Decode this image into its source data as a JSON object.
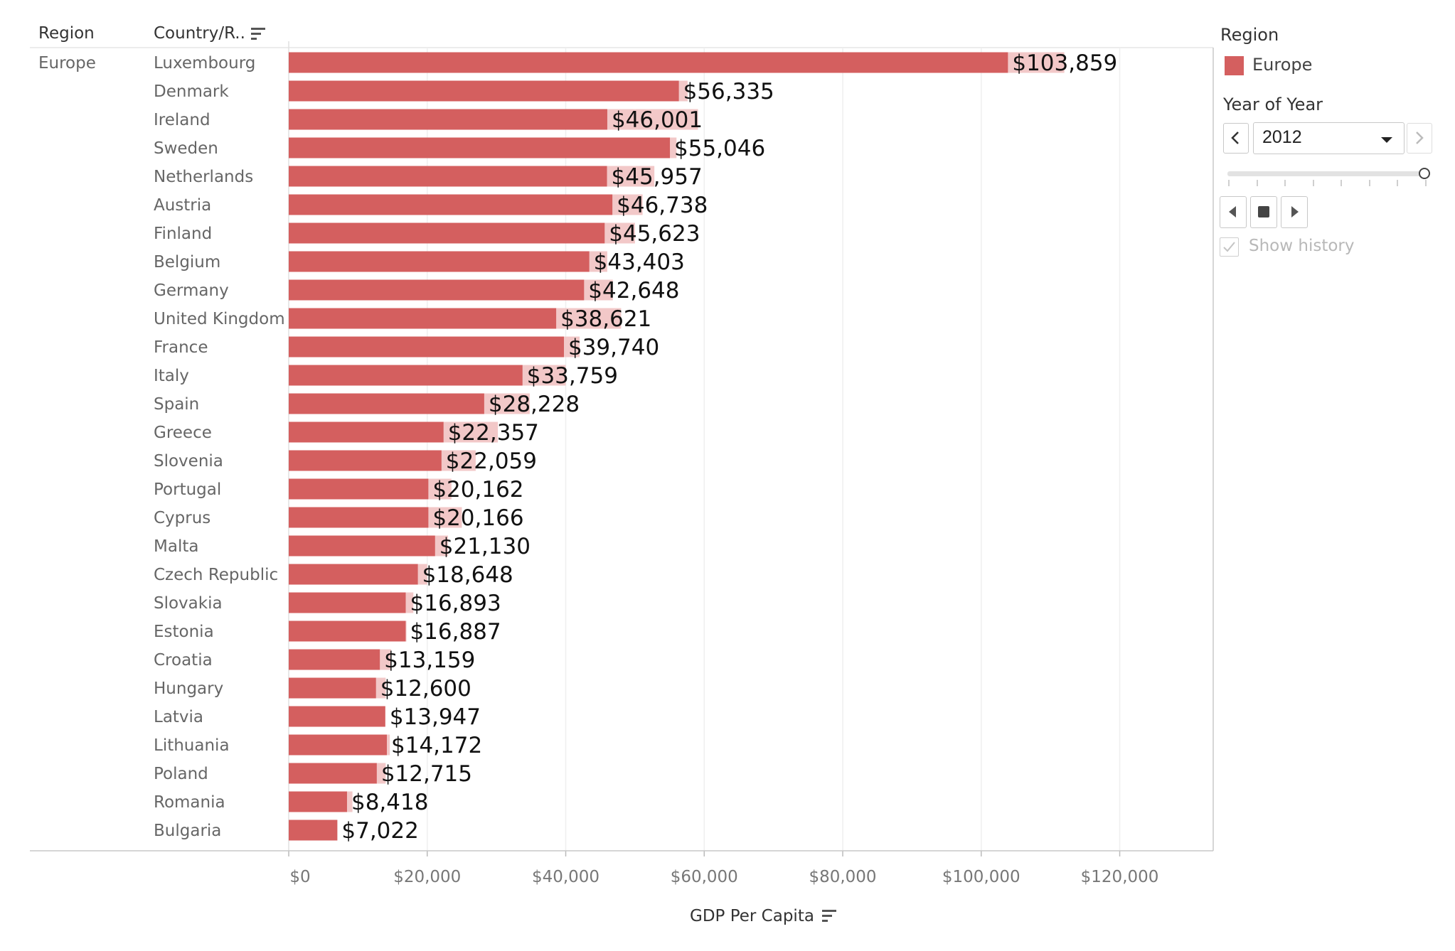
{
  "headers": {
    "region": "Region",
    "country": "Country/R.."
  },
  "chart_data": {
    "type": "bar",
    "orientation": "horizontal",
    "region": "Europe",
    "categories": [
      "Luxembourg",
      "Denmark",
      "Ireland",
      "Sweden",
      "Netherlands",
      "Austria",
      "Finland",
      "Belgium",
      "Germany",
      "United Kingdom",
      "France",
      "Italy",
      "Spain",
      "Greece",
      "Slovenia",
      "Portugal",
      "Cyprus",
      "Malta",
      "Czech Republic",
      "Slovakia",
      "Estonia",
      "Croatia",
      "Hungary",
      "Latvia",
      "Lithuania",
      "Poland",
      "Romania",
      "Bulgaria"
    ],
    "series": [
      {
        "name": "Europe",
        "values": [
          103859,
          56335,
          46001,
          55046,
          45957,
          46738,
          45623,
          43403,
          42648,
          38621,
          39740,
          33759,
          28228,
          22357,
          22059,
          20162,
          20166,
          21130,
          18648,
          16893,
          16887,
          13159,
          12600,
          13947,
          14172,
          12715,
          8418,
          7022
        ],
        "labels": [
          "$103,859",
          "$56,335",
          "$46,001",
          "$55,046",
          "$45,957",
          "$46,738",
          "$45,623",
          "$43,403",
          "$42,648",
          "$38,621",
          "$39,740",
          "$33,759",
          "$28,228",
          "$22,357",
          "$22,059",
          "$20,162",
          "$20,166",
          "$21,130",
          "$18,648",
          "$16,893",
          "$16,887",
          "$13,159",
          "$12,600",
          "$13,947",
          "$14,172",
          "$12,715",
          "$8,418",
          "$7,022"
        ]
      }
    ],
    "history_values": [
      112000,
      57600,
      59100,
      56000,
      52800,
      51100,
      50000,
      46000,
      46800,
      48000,
      42000,
      40000,
      34800,
      30200,
      27000,
      23500,
      25000,
      23000,
      20000,
      18000,
      17000,
      14800,
      14000,
      13900,
      14600,
      14000,
      9200,
      7000
    ],
    "xlabel": "GDP Per Capita",
    "xlim": [
      0,
      133500
    ],
    "xticks": [
      0,
      20000,
      40000,
      60000,
      80000,
      100000,
      120000
    ],
    "xtick_labels": [
      "$0",
      "$20,000",
      "$40,000",
      "$60,000",
      "$80,000",
      "$100,000",
      "$120,000"
    ],
    "grid": true,
    "colors": {
      "bar": "#d45f5f",
      "history": "#f2c8c8"
    }
  },
  "panel": {
    "legend_title": "Region",
    "legend_items": [
      {
        "label": "Europe",
        "color": "#d45f5f"
      }
    ],
    "year_title": "Year of Year",
    "year_value": "2012",
    "slider_position": 1.0,
    "show_history_label": "Show history",
    "show_history_checked": true,
    "icons": {
      "prev": "chevron-left-icon",
      "next": "chevron-right-icon",
      "dropdown": "caret-down-icon",
      "play_back": "play-back-icon",
      "stop": "stop-icon",
      "play_forward": "play-forward-icon",
      "sort": "sort-icon",
      "check": "check-icon"
    }
  }
}
